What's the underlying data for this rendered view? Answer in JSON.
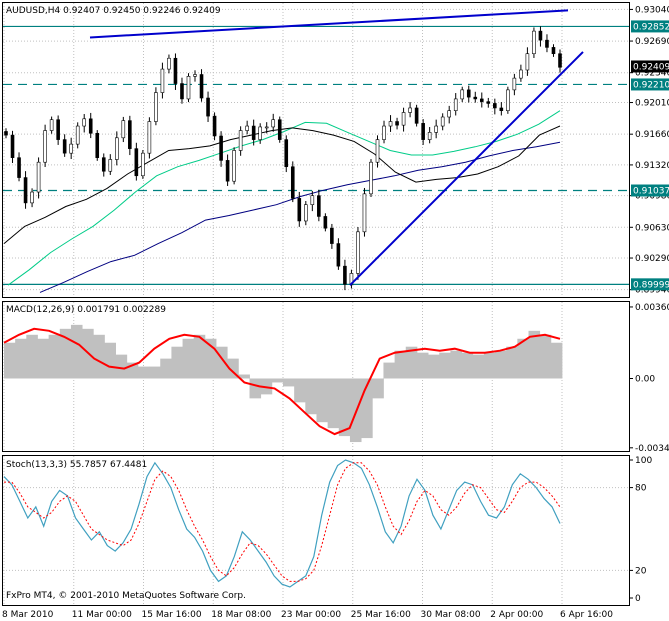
{
  "chart_data": [
    {
      "type": "candlestick",
      "title": "AUDUSD,H4  0.92407 0.92450 0.92246 0.92409",
      "symbol": "AUDUSD",
      "timeframe": "H4",
      "ohlc_last": [
        0.92407,
        0.9245,
        0.92246,
        0.92409
      ],
      "ylim": [
        0.8987,
        0.931
      ],
      "y_ticks": [
        "0.93040",
        "0.92690",
        "0.92340",
        "0.92010",
        "0.91660",
        "0.91320",
        "0.90980",
        "0.90630",
        "0.90290",
        "0.89940"
      ],
      "highlight_levels": [
        {
          "label": "0.92852",
          "value": 0.92852,
          "style": "solid",
          "color": "#008080"
        },
        {
          "label": "0.92409",
          "value": 0.92409,
          "style": "price",
          "color": "#000000"
        },
        {
          "label": "0.92210",
          "value": 0.9221,
          "style": "dashed",
          "color": "#008080"
        },
        {
          "label": "0.91037",
          "value": 0.91037,
          "style": "dashed",
          "color": "#008080"
        },
        {
          "label": "0.89999",
          "value": 0.89999,
          "style": "solid",
          "color": "#008080"
        }
      ],
      "close_series": [
        0.9165,
        0.914,
        0.9118,
        0.909,
        0.9102,
        0.9135,
        0.917,
        0.9182,
        0.916,
        0.9145,
        0.9155,
        0.9175,
        0.9183,
        0.9167,
        0.914,
        0.9125,
        0.9138,
        0.9162,
        0.9181,
        0.915,
        0.912,
        0.9145,
        0.918,
        0.9212,
        0.9238,
        0.925,
        0.9222,
        0.9205,
        0.923,
        0.9232,
        0.9206,
        0.9186,
        0.9164,
        0.9137,
        0.9114,
        0.9148,
        0.917,
        0.9175,
        0.916,
        0.9174,
        0.9174,
        0.9182,
        0.916,
        0.913,
        0.9095,
        0.907,
        0.9088,
        0.9098,
        0.9075,
        0.9062,
        0.9045,
        0.902,
        0.9,
        0.9012,
        0.9058,
        0.91,
        0.9135,
        0.916,
        0.9175,
        0.918,
        0.9176,
        0.919,
        0.9195,
        0.9178,
        0.916,
        0.9168,
        0.9175,
        0.9185,
        0.9192,
        0.9205,
        0.9215,
        0.9207,
        0.9205,
        0.9202,
        0.92,
        0.9195,
        0.9192,
        0.9215,
        0.9228,
        0.9237,
        0.9255,
        0.928,
        0.927,
        0.9262,
        0.9255,
        0.924
      ],
      "lines": {
        "ma_black": [
          0.9045,
          0.9064,
          0.9074,
          0.9086,
          0.9094,
          0.9106,
          0.9122,
          0.9135,
          0.9148,
          0.915,
          0.9153,
          0.916,
          0.9165,
          0.917,
          0.9173,
          0.917,
          0.9165,
          0.9158,
          0.9144,
          0.9124,
          0.9113,
          0.9116,
          0.9118,
          0.9122,
          0.913,
          0.9142,
          0.9165,
          0.9175
        ],
        "ma_green": [
          0.8999,
          0.9016,
          0.9035,
          0.905,
          0.9064,
          0.9082,
          0.9102,
          0.912,
          0.913,
          0.9137,
          0.9145,
          0.9153,
          0.916,
          0.9169,
          0.9179,
          0.9178,
          0.9168,
          0.9158,
          0.9148,
          0.9143,
          0.9143,
          0.9147,
          0.9152,
          0.9158,
          0.9166,
          0.9177,
          0.9192
        ],
        "ma_navy": [
          0.8991,
          0.9002,
          0.9014,
          0.9025,
          0.9032,
          0.9045,
          0.9057,
          0.9071,
          0.9076,
          0.9082,
          0.9088,
          0.9097,
          0.9104,
          0.911,
          0.9115,
          0.912,
          0.9126,
          0.913,
          0.9135,
          0.9142,
          0.9148,
          0.9152,
          0.9157
        ]
      },
      "trendlines": [
        {
          "from": [
            0.9273,
            "11 Mar"
          ],
          "to": [
            0.9303,
            "7 Apr"
          ],
          "color": "#0000cc"
        },
        {
          "from": [
            0.8999,
            "25 Mar"
          ],
          "to": [
            0.9257,
            "7 Apr"
          ],
          "color": "#0000cc"
        }
      ]
    },
    {
      "type": "bar",
      "title": "MACD(12,26,9) 0.001791 0.002289",
      "ylim": [
        -0.0036,
        0.0038
      ],
      "y_ticks": [
        "0.003601",
        "0.00",
        "-0.00349"
      ],
      "histogram": [
        0.0018,
        0.002,
        0.0022,
        0.002,
        0.0022,
        0.0025,
        0.0027,
        0.0025,
        0.0022,
        0.0018,
        0.0012,
        0.0008,
        0.0006,
        0.0006,
        0.001,
        0.0016,
        0.002,
        0.0022,
        0.002,
        0.0016,
        0.001,
        0.0002,
        -0.001,
        -0.0008,
        -0.0002,
        -0.0004,
        -0.0012,
        -0.0018,
        -0.0022,
        -0.0025,
        -0.0029,
        -0.0032,
        -0.003,
        -0.001,
        0.0008,
        0.0014,
        0.0016,
        0.0013,
        0.0012,
        0.0013,
        0.0014,
        0.0013,
        0.0012,
        0.0013,
        0.0014,
        0.0016,
        0.002,
        0.0024,
        0.0022,
        0.0018
      ],
      "signal": [
        0.0018,
        0.0022,
        0.0025,
        0.0024,
        0.0021,
        0.0017,
        0.001,
        0.0006,
        0.0005,
        0.0008,
        0.0015,
        0.002,
        0.0022,
        0.0021,
        0.0015,
        0.0005,
        -0.0002,
        -0.0004,
        -0.0005,
        -0.001,
        -0.0017,
        -0.0024,
        -0.0028,
        -0.0025,
        -0.0006,
        0.001,
        0.0013,
        0.0014,
        0.0015,
        0.0014,
        0.0015,
        0.0013,
        0.0013,
        0.0014,
        0.0016,
        0.0021,
        0.0022,
        0.002
      ],
      "colors": {
        "histogram": "#c0c0c0",
        "signal": "#ff0000"
      }
    },
    {
      "type": "line",
      "title": "Stoch(13,3,3) 55.7857 67.4481",
      "ylim": [
        0,
        100
      ],
      "y_ticks": [
        "100",
        "80",
        "20",
        "0"
      ],
      "series": [
        {
          "name": "main",
          "color": "#40a0c0",
          "values": [
            88,
            82,
            70,
            58,
            66,
            52,
            70,
            78,
            74,
            58,
            50,
            42,
            48,
            38,
            34,
            40,
            50,
            68,
            88,
            98,
            90,
            80,
            64,
            50,
            44,
            34,
            20,
            12,
            16,
            30,
            48,
            42,
            34,
            26,
            16,
            10,
            8,
            12,
            16,
            30,
            60,
            84,
            96,
            100,
            98,
            94,
            82,
            66,
            48,
            40,
            52,
            74,
            86,
            78,
            60,
            50,
            64,
            78,
            84,
            82,
            70,
            60,
            58,
            66,
            82,
            90,
            86,
            80,
            72,
            66,
            54
          ]
        },
        {
          "name": "signal",
          "color": "#ff0000",
          "values": [
            84,
            84,
            76,
            66,
            62,
            58,
            62,
            70,
            74,
            70,
            60,
            50,
            46,
            42,
            40,
            38,
            42,
            54,
            70,
            86,
            92,
            88,
            78,
            64,
            52,
            42,
            30,
            20,
            16,
            22,
            32,
            40,
            38,
            32,
            24,
            16,
            12,
            12,
            14,
            20,
            38,
            60,
            82,
            94,
            98,
            98,
            92,
            82,
            66,
            52,
            46,
            56,
            70,
            78,
            74,
            64,
            60,
            66,
            76,
            82,
            80,
            72,
            64,
            62,
            70,
            80,
            84,
            84,
            80,
            74,
            66
          ]
        }
      ],
      "levels": [
        80,
        20
      ]
    }
  ],
  "x_ticks": [
    "8 Mar 2010",
    "11 Mar 00:00",
    "15 Mar 16:00",
    "18 Mar 08:00",
    "23 Mar 00:00",
    "25 Mar 16:00",
    "30 Mar 08:00",
    "2 Apr 00:00",
    "6 Apr 16:00"
  ],
  "copyright": "FxPro MT4, © 2001-2010 MetaQuotes Software Corp.",
  "colors": {
    "candle": "#000000",
    "grid": "#c0c0c0",
    "axis": "#000000",
    "level": "#008080",
    "ma_black": "#000000",
    "ma_green": "#00cc88",
    "ma_navy": "#000080",
    "trend": "#0000cc"
  }
}
